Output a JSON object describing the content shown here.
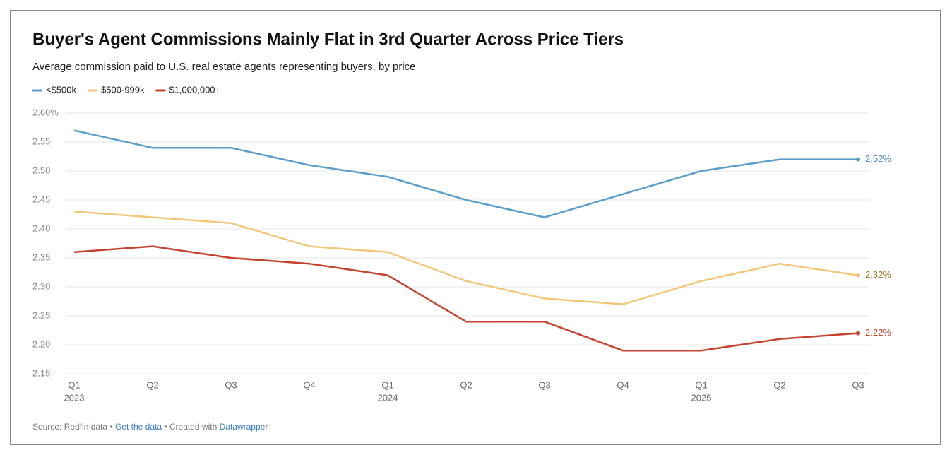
{
  "chart_data": {
    "type": "line",
    "title": "Buyer's Agent Commissions Mainly Flat in 3rd Quarter Across Price Tiers",
    "subtitle": "Average commission paid to U.S. real estate agents representing buyers, by price",
    "categories": [
      "Q1",
      "Q2",
      "Q3",
      "Q4",
      "Q1",
      "Q2",
      "Q3",
      "Q4",
      "Q1",
      "Q2",
      "Q3"
    ],
    "years": [
      "2023",
      null,
      null,
      null,
      "2024",
      null,
      null,
      null,
      "2025",
      null,
      null
    ],
    "series": [
      {
        "name": "<$500k",
        "color": "#5b9dc9",
        "label_color": "#4a8cc0",
        "values": [
          2.57,
          2.54,
          2.54,
          2.51,
          2.49,
          2.45,
          2.42,
          2.46,
          2.5,
          2.52,
          2.52
        ],
        "value_labels": [
          null,
          null,
          null,
          null,
          null,
          null,
          null,
          null,
          null,
          null,
          "2.52%"
        ]
      },
      {
        "name": "$500-999k",
        "color": "#f3c77a",
        "label_color": "#9a7a2c",
        "values": [
          2.43,
          2.42,
          2.41,
          2.37,
          2.36,
          2.31,
          2.28,
          2.27,
          2.31,
          2.34,
          2.32
        ],
        "value_labels": [
          null,
          null,
          null,
          null,
          null,
          null,
          null,
          null,
          null,
          null,
          "2.32%"
        ]
      },
      {
        "name": "$1,000,000+",
        "color": "#c4432f",
        "label_color": "#c4432f",
        "values": [
          2.36,
          2.37,
          2.35,
          2.34,
          2.32,
          2.24,
          2.24,
          2.19,
          2.19,
          2.21,
          2.22
        ],
        "value_labels": [
          null,
          null,
          null,
          null,
          null,
          null,
          null,
          null,
          null,
          null,
          "2.22%"
        ]
      }
    ],
    "ylim": [
      2.15,
      2.6
    ],
    "yticks": [
      2.15,
      {
        "value": 2.2,
        "label": "2.20"
      },
      2.25,
      {
        "value": 2.3,
        "label": "2.30"
      },
      2.35,
      {
        "value": 2.4,
        "label": "2.40"
      },
      2.45,
      {
        "value": 2.5,
        "label": "2.50"
      },
      2.55,
      {
        "value": 2.6,
        "label": "2.60%"
      }
    ],
    "grid": true,
    "footer": {
      "source": "Source: Redfin data",
      "sep1": "•",
      "link1": "Get the data",
      "sep2": "• Created with",
      "link2": "Datawrapper"
    }
  }
}
